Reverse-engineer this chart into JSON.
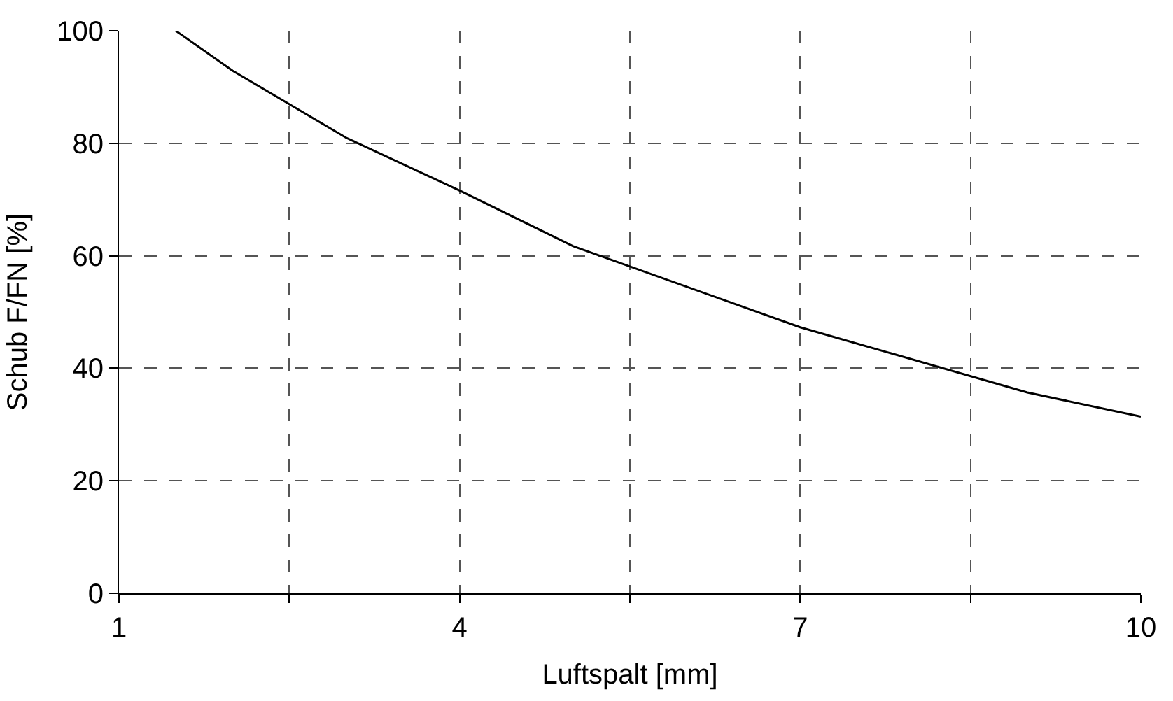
{
  "chart_data": {
    "type": "line",
    "xlabel": "Luftspalt [mm]",
    "ylabel": "Schub F/FN [%]",
    "x": [
      1.5,
      2,
      3,
      4,
      5,
      7,
      9,
      10
    ],
    "series": [
      {
        "color": "#000000",
        "values": [
          100,
          92.9,
          81,
          71.6,
          61.7,
          47.3,
          35.7,
          31.4
        ]
      }
    ],
    "xlim": [
      1,
      10
    ],
    "xticks": [
      1,
      {
        "value": 2.5,
        "label": null
      },
      4,
      {
        "value": 5.5,
        "label": null
      },
      7,
      {
        "value": 8.5,
        "label": null
      },
      10
    ],
    "ylim": [
      0,
      100
    ],
    "yticks": [
      0,
      20,
      40,
      60,
      80,
      100
    ],
    "grid": true,
    "marker": "none",
    "line_style": "solid"
  }
}
